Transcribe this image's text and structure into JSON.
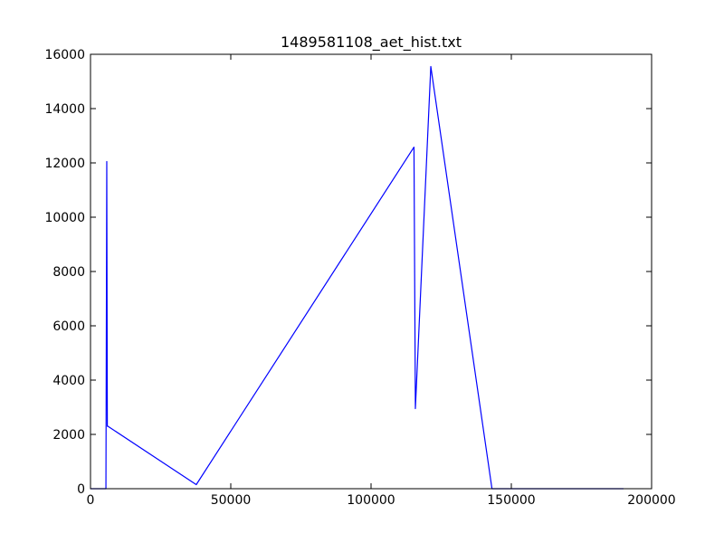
{
  "chart_data": {
    "type": "line",
    "title": "1489581108_aet_hist.txt",
    "xlabel": "",
    "ylabel": "",
    "xlim": [
      0,
      200000
    ],
    "ylim": [
      0,
      16000
    ],
    "xticks": [
      0,
      50000,
      100000,
      150000,
      200000
    ],
    "yticks": [
      0,
      2000,
      4000,
      6000,
      8000,
      10000,
      12000,
      14000,
      16000
    ],
    "xtick_labels": [
      "0",
      "50000",
      "100000",
      "150000",
      "200000"
    ],
    "ytick_labels": [
      "0",
      "2000",
      "4000",
      "6000",
      "8000",
      "10000",
      "12000",
      "14000",
      "16000"
    ],
    "grid": false,
    "legend": "none",
    "series": [
      {
        "color": "#0000ff",
        "x": [
          0,
          5500,
          5800,
          6000,
          6200,
          37700,
          115300,
          115800,
          121300,
          143100,
          190000
        ],
        "y": [
          0,
          0,
          12050,
          2300,
          2300,
          150,
          12580,
          2950,
          15550,
          0,
          0
        ]
      }
    ]
  }
}
